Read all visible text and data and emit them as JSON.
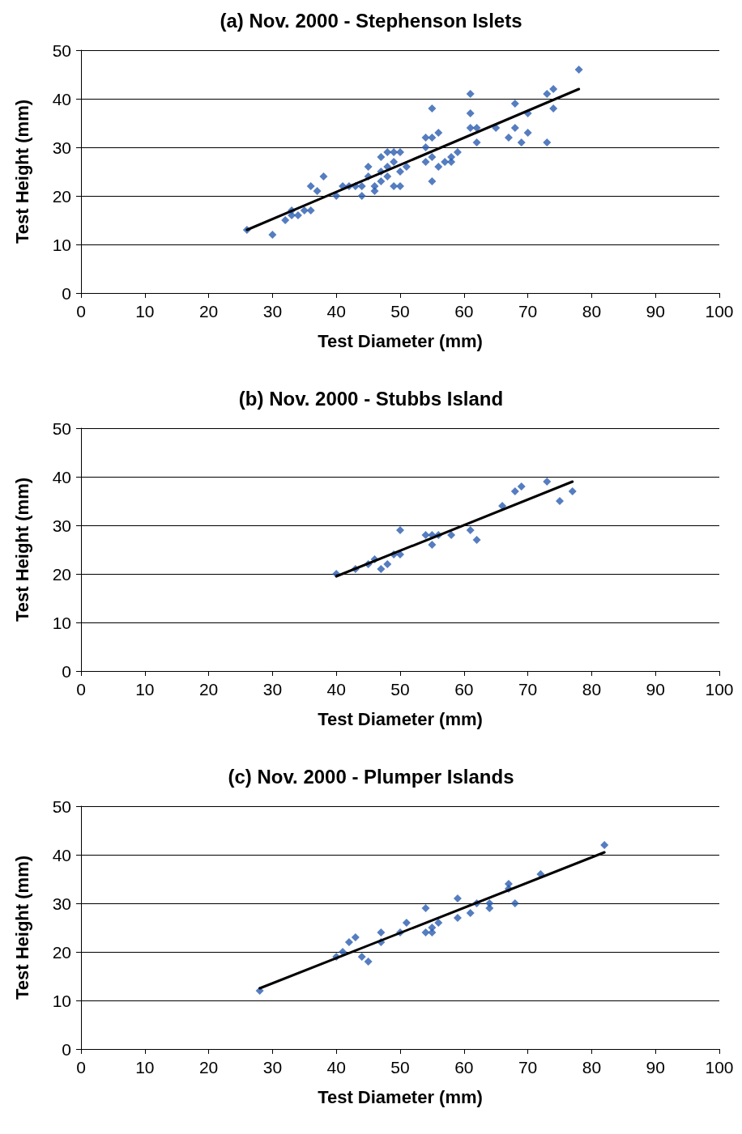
{
  "chart_data": [
    {
      "type": "scatter",
      "title": "(a) Nov. 2000 - Stephenson Islets",
      "xlabel": "Test Diameter (mm)",
      "ylabel": "Test Height (mm)",
      "xlim": [
        0,
        100
      ],
      "xticks": [
        0,
        10,
        20,
        30,
        40,
        50,
        60,
        70,
        80,
        90,
        100
      ],
      "ylim": [
        0,
        50
      ],
      "yticks": [
        0,
        10,
        20,
        30,
        40,
        50
      ],
      "grid": "y",
      "marker": "diamond",
      "series": [
        {
          "color": "#2b5cb0",
          "x": [
            26,
            30,
            32,
            33,
            33,
            34,
            35,
            36,
            37,
            38,
            36,
            40,
            41,
            42,
            43,
            44,
            44,
            45,
            45,
            46,
            46,
            47,
            47,
            47,
            48,
            48,
            48,
            49,
            49,
            49,
            50,
            50,
            50,
            51,
            54,
            54,
            54,
            55,
            55,
            55,
            55,
            56,
            56,
            57,
            58,
            58,
            59,
            61,
            61,
            61,
            62,
            62,
            65,
            67,
            68,
            68,
            69,
            70,
            70,
            73,
            73,
            74,
            74,
            78
          ],
          "values": [
            13,
            12,
            15,
            16,
            17,
            16,
            17,
            22,
            21,
            24,
            17,
            20,
            22,
            22,
            22,
            20,
            22,
            24,
            26,
            22,
            21,
            23,
            25,
            28,
            26,
            29,
            24,
            27,
            29,
            22,
            29,
            22,
            25,
            26,
            27,
            30,
            32,
            38,
            23,
            28,
            32,
            26,
            33,
            27,
            28,
            27,
            29,
            41,
            37,
            34,
            34,
            31,
            34,
            32,
            34,
            39,
            31,
            33,
            37,
            31,
            41,
            42,
            38,
            46
          ]
        },
        {
          "type": "line",
          "color": "#000000",
          "marker": "none",
          "x": [
            26,
            78
          ],
          "values": [
            13,
            42
          ]
        }
      ]
    },
    {
      "type": "scatter",
      "title": "(b) Nov. 2000 - Stubbs Island",
      "xlabel": "Test Diameter (mm)",
      "ylabel": "Test Height (mm)",
      "xlim": [
        0,
        100
      ],
      "xticks": [
        0,
        10,
        20,
        30,
        40,
        50,
        60,
        70,
        80,
        90,
        100
      ],
      "ylim": [
        0,
        50
      ],
      "yticks": [
        0,
        10,
        20,
        30,
        40,
        50
      ],
      "grid": "y",
      "marker": "diamond",
      "series": [
        {
          "color": "#2b5cb0",
          "x": [
            40,
            43,
            45,
            46,
            47,
            48,
            49,
            50,
            50,
            54,
            55,
            55,
            56,
            58,
            61,
            62,
            66,
            68,
            69,
            73,
            75,
            77
          ],
          "values": [
            20,
            21,
            22,
            23,
            21,
            22,
            24,
            29,
            24,
            28,
            28,
            26,
            28,
            28,
            29,
            27,
            34,
            37,
            38,
            39,
            35,
            37
          ]
        },
        {
          "type": "line",
          "color": "#000000",
          "marker": "none",
          "x": [
            40,
            77
          ],
          "values": [
            19.5,
            39
          ]
        }
      ]
    },
    {
      "type": "scatter",
      "title": "(c) Nov. 2000 - Plumper Islands",
      "xlabel": "Test Diameter (mm)",
      "ylabel": "Test Height (mm)",
      "xlim": [
        0,
        100
      ],
      "xticks": [
        0,
        10,
        20,
        30,
        40,
        50,
        60,
        70,
        80,
        90,
        100
      ],
      "ylim": [
        0,
        50
      ],
      "yticks": [
        0,
        10,
        20,
        30,
        40,
        50
      ],
      "grid": "y",
      "marker": "diamond",
      "series": [
        {
          "color": "#2b5cb0",
          "x": [
            28,
            40,
            41,
            42,
            43,
            44,
            45,
            47,
            47,
            50,
            51,
            54,
            54,
            55,
            55,
            56,
            59,
            59,
            61,
            62,
            64,
            64,
            67,
            67,
            68,
            72,
            82
          ],
          "values": [
            12,
            19,
            20,
            22,
            23,
            19,
            18,
            24,
            22,
            24,
            26,
            29,
            24,
            25,
            24,
            26,
            31,
            27,
            28,
            30,
            29,
            30,
            34,
            33,
            30,
            36,
            42
          ]
        },
        {
          "type": "line",
          "color": "#000000",
          "marker": "none",
          "x": [
            28,
            82
          ],
          "values": [
            12.5,
            40.5
          ]
        }
      ]
    }
  ]
}
